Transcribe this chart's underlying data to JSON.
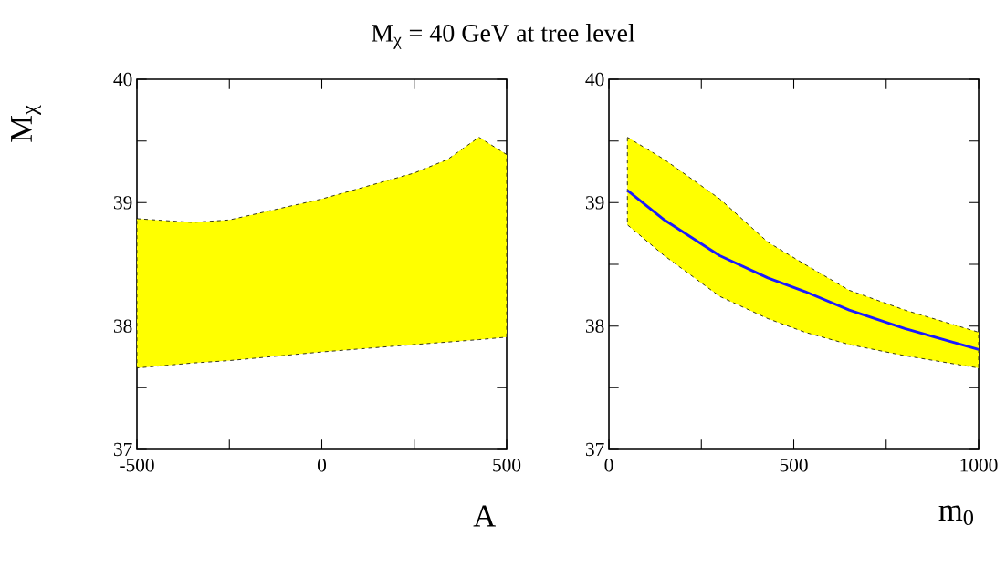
{
  "chart_data": [
    {
      "type": "line",
      "title": "M$_{χ}$ = 40 GeV at tree level",
      "ylabel": "M$_{χ}$",
      "xlabel": "A",
      "x": [
        -500,
        -350,
        -250,
        0,
        250,
        340,
        425,
        500
      ],
      "series": [
        {
          "color": "#ffff00",
          "values": [
            null,
            null,
            null,
            null,
            null,
            null,
            null,
            null
          ],
          "upper": [
            38.87,
            38.84,
            38.86,
            39.03,
            39.24,
            39.35,
            39.53,
            39.39
          ],
          "lower": [
            37.66,
            37.7,
            37.72,
            37.79,
            37.85,
            37.87,
            37.89,
            37.91
          ]
        }
      ],
      "xlim": [
        -500,
        500
      ],
      "ylim": [
        37,
        40
      ],
      "xticks": [
        -500,
        {
          "value": -250,
          "label": null
        },
        0,
        {
          "value": 250,
          "label": null
        },
        500
      ],
      "yticks": [
        37,
        {
          "value": 37.5,
          "label": null
        },
        38,
        {
          "value": 38.5,
          "label": null
        },
        39,
        {
          "value": 39.5,
          "label": null
        },
        40
      ]
    },
    {
      "type": "line",
      "xlabel": "m$_{0}$",
      "x": [
        50,
        150,
        300,
        430,
        530,
        650,
        800,
        1000
      ],
      "series": [
        {
          "color": "#ffff00",
          "values": [
            null,
            null,
            null,
            null,
            null,
            null,
            null,
            null
          ],
          "upper": [
            39.53,
            39.35,
            39.03,
            38.68,
            38.5,
            38.29,
            38.13,
            37.95
          ],
          "lower": [
            38.82,
            38.57,
            38.24,
            38.06,
            37.95,
            37.85,
            37.76,
            37.66
          ]
        },
        {
          "color": "#1a1aff",
          "values": [
            39.1,
            38.86,
            38.57,
            38.39,
            38.28,
            38.13,
            37.98,
            37.81
          ]
        }
      ],
      "xlim": [
        0,
        1000
      ],
      "ylim": [
        37,
        40
      ],
      "xticks": [
        0,
        {
          "value": 250,
          "label": null
        },
        500,
        {
          "value": 750,
          "label": null
        },
        1000
      ],
      "yticks": [
        37,
        {
          "value": 37.5,
          "label": null
        },
        38,
        {
          "value": 38.5,
          "label": null
        },
        39,
        {
          "value": 39.5,
          "label": null
        },
        40
      ]
    }
  ]
}
